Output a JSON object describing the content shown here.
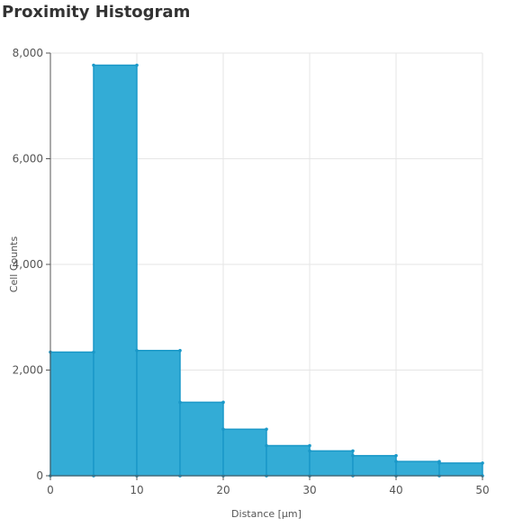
{
  "chart_data": {
    "type": "bar",
    "title": "Proximity Histogram",
    "xlabel": "Distance [µm]",
    "ylabel": "Cell Counts",
    "bin_edges": [
      0,
      5,
      10,
      15,
      20,
      25,
      30,
      35,
      40,
      45,
      50
    ],
    "values": [
      2340,
      7770,
      2370,
      1390,
      880,
      570,
      470,
      380,
      270,
      240
    ],
    "xlim": [
      0,
      50
    ],
    "ylim": [
      0,
      8000
    ],
    "x_ticks": [
      0,
      10,
      20,
      30,
      40,
      50
    ],
    "y_ticks": [
      0,
      2000,
      4000,
      6000,
      8000
    ],
    "x_tick_labels": [
      "0",
      "10",
      "20",
      "30",
      "40",
      "50"
    ],
    "y_tick_labels": [
      "0",
      "2,000",
      "4,000",
      "6,000",
      "8,000"
    ],
    "grid": true,
    "legend": "none",
    "colors": {
      "bar_fill": "#33acd6",
      "bar_edge": "#1a98c8",
      "grid": "#e6e6e6",
      "axis": "#555555"
    }
  }
}
